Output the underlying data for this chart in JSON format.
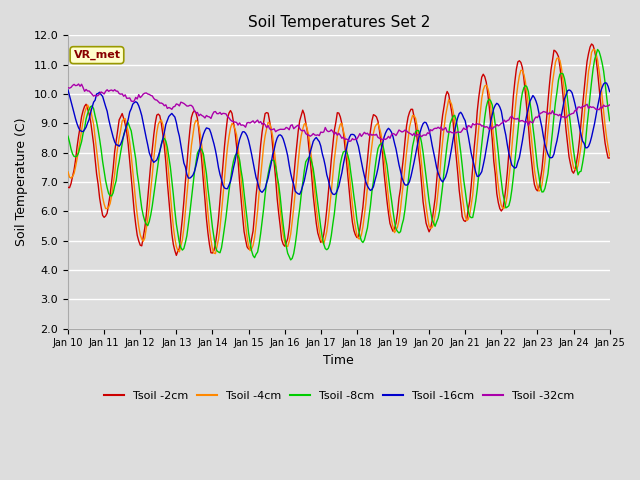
{
  "title": "Soil Temperatures Set 2",
  "xlabel": "Time",
  "ylabel": "Soil Temperature (C)",
  "ylim": [
    2.0,
    12.0
  ],
  "yticks": [
    2.0,
    3.0,
    4.0,
    5.0,
    6.0,
    7.0,
    8.0,
    9.0,
    10.0,
    11.0,
    12.0
  ],
  "xtick_labels": [
    "Jan 10",
    "Jan 11",
    "Jan 12",
    "Jan 13",
    "Jan 14",
    "Jan 15",
    "Jan 16",
    "Jan 17",
    "Jan 18",
    "Jan 19",
    "Jan 20",
    "Jan 21",
    "Jan 22",
    "Jan 23",
    "Jan 24",
    "Jan 25"
  ],
  "colors": {
    "2cm": "#cc0000",
    "4cm": "#ff8800",
    "8cm": "#00cc00",
    "16cm": "#0000cc",
    "32cm": "#aa00aa"
  },
  "legend_labels": [
    "Tsoil -2cm",
    "Tsoil -4cm",
    "Tsoil -8cm",
    "Tsoil -16cm",
    "Tsoil -32cm"
  ],
  "annotation_text": "VR_met",
  "annotation_bg": "#ffffcc",
  "annotation_border": "#999900",
  "background_color": "#dddddd",
  "grid_color": "#ffffff",
  "title_fontsize": 11,
  "axis_fontsize": 9
}
